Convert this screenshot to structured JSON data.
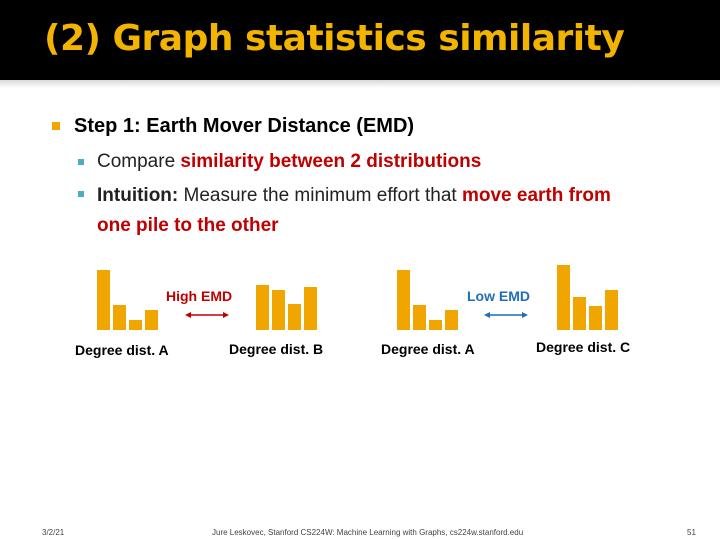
{
  "slide": {
    "title": "(2) Graph statistics similarity",
    "bullet_main": "Step 1: Earth Mover Distance (EMD)",
    "sub1_plain": "Compare ",
    "sub1_red": "similarity between 2 distributions",
    "sub2_bold": "Intuition:",
    "sub2_plain": " Measure the minimum effort that ",
    "sub2_red_line1": "move earth from",
    "sub2_red_line2": "one pile to the other"
  },
  "figure": {
    "high_emd": "High EMD",
    "low_emd": "Low EMD",
    "captions": [
      "Degree dist. A",
      "Degree dist. B",
      "Degree dist. A",
      "Degree dist. C"
    ],
    "colors": {
      "bar": "#f0a500",
      "high": "#c00000",
      "low": "#1f6fb7"
    },
    "distributions": {
      "A": [
        1.0,
        0.42,
        0.17,
        0.33
      ],
      "B": [
        0.75,
        0.66,
        0.44,
        0.71
      ],
      "C": [
        1.0,
        0.5,
        0.37,
        0.62
      ]
    }
  },
  "footer": {
    "date": "3/2/21",
    "credit": "Jure Leskovec, Stanford CS224W: Machine Learning with Graphs, cs224w.stanford.edu",
    "page": "51"
  }
}
